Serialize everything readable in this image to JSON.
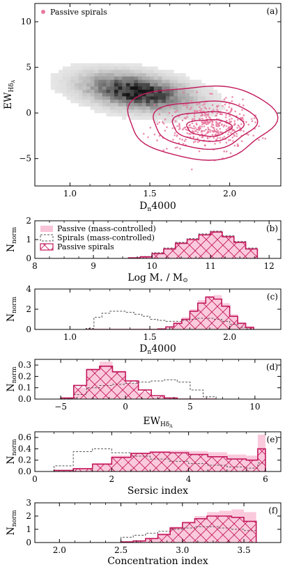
{
  "colors": {
    "passive": "#c2185b",
    "passive_fill": "#f9c4d8",
    "passive_hatch": "#c2185b",
    "spiral_line": "#555555",
    "scatter": "#e8799f",
    "contour": "#c2185b",
    "density_dark": "#111111"
  },
  "chart_data": [
    {
      "id": "a",
      "type": "scatter",
      "panel_label": "(a)",
      "xlabel": "D",
      "xlabel_sub": "n",
      "xlabel_tail": "4000",
      "ylabel": "EW",
      "ylabel_sub": "Hδ",
      "ylabel_subsub": "A",
      "xlim": [
        0.78,
        2.32
      ],
      "ylim": [
        -8,
        12
      ],
      "xticks": [
        "1.0",
        "1.5",
        "2.0"
      ],
      "xtick_values": [
        1.0,
        1.5,
        2.0
      ],
      "yticks": [
        "−5",
        "0",
        "5",
        "10"
      ],
      "ytick_values": [
        -5,
        0,
        5,
        10
      ],
      "legend": [
        "Passive spirals"
      ],
      "legend_placement": "top-left",
      "density": {
        "center_x": 1.42,
        "center_y": 2.3,
        "slope": -6.0,
        "sigma_major": 0.32,
        "sigma_minor": 1.3
      },
      "contours": [
        {
          "cx": 1.87,
          "cy": -1.6,
          "rx": 0.14,
          "ry": 0.9
        },
        {
          "cx": 1.86,
          "cy": -1.4,
          "rx": 0.22,
          "ry": 1.6
        },
        {
          "cx": 1.84,
          "cy": -1.2,
          "rx": 0.32,
          "ry": 2.6
        },
        {
          "cx": 1.82,
          "cy": -0.9,
          "rx": 0.46,
          "ry": 4.0
        }
      ],
      "scatter_center": {
        "x": 1.87,
        "y": -1.3
      }
    },
    {
      "id": "b",
      "type": "bar",
      "panel_label": "(b)",
      "xlabel": "Log M",
      "xlabel_star": "⋆",
      "xlabel_tail": " / M",
      "xlabel_sun": "⊙",
      "ylabel": "N",
      "ylabel_sub": "norm",
      "xlim": [
        8,
        12.2
      ],
      "ylim": [
        0,
        2
      ],
      "xticks": [
        "8",
        "9",
        "10",
        "11",
        "12"
      ],
      "xtick_values": [
        8,
        9,
        10,
        11,
        12
      ],
      "yticks": [
        "0",
        "1",
        "2"
      ],
      "ytick_values": [
        0,
        1,
        2
      ],
      "legend": [
        "Passive (mass-controlled)",
        "Spirals (mass-controlled)",
        "Passive spirals"
      ],
      "legend_placement": "top-left",
      "bin_edges": [
        9.6,
        9.8,
        10.0,
        10.2,
        10.4,
        10.6,
        10.8,
        11.0,
        11.2,
        11.4,
        11.6,
        11.8
      ],
      "series": [
        {
          "name": "Passive (mass-controlled)",
          "values": [
            0.03,
            0.1,
            0.3,
            0.55,
            0.85,
            1.05,
            1.3,
            1.45,
            1.2,
            0.9,
            0.55
          ]
        },
        {
          "name": "Spirals (mass-controlled)",
          "values": [
            0.03,
            0.1,
            0.3,
            0.55,
            0.85,
            1.05,
            1.3,
            1.45,
            1.2,
            0.9,
            0.55
          ]
        },
        {
          "name": "Passive spirals",
          "values": [
            0.03,
            0.08,
            0.25,
            0.5,
            0.8,
            1.0,
            1.25,
            1.4,
            1.15,
            0.85,
            0.5
          ]
        }
      ]
    },
    {
      "id": "c",
      "type": "bar",
      "panel_label": "(c)",
      "xlabel": "D",
      "xlabel_sub": "n",
      "xlabel_tail": "4000",
      "ylabel": "N",
      "ylabel_sub": "norm",
      "xlim": [
        0.78,
        2.32
      ],
      "ylim": [
        0,
        4
      ],
      "xticks": [
        "1.0",
        "1.5",
        "2.0"
      ],
      "xtick_values": [
        1.0,
        1.5,
        2.0
      ],
      "yticks": [
        "0",
        "2",
        "4"
      ],
      "ytick_values": [
        0,
        2,
        4
      ],
      "bin_edges": [
        1.1,
        1.15,
        1.2,
        1.25,
        1.3,
        1.35,
        1.4,
        1.45,
        1.5,
        1.55,
        1.6,
        1.65,
        1.7,
        1.75,
        1.8,
        1.85,
        1.9,
        1.95,
        2.0,
        2.05,
        2.1,
        2.15
      ],
      "series": [
        {
          "name": "Passive (mass-controlled)",
          "values": [
            0,
            0,
            0,
            0,
            0,
            0,
            0,
            0,
            0,
            0.1,
            0.3,
            0.7,
            1.2,
            2.0,
            2.9,
            3.3,
            3.4,
            2.6,
            1.5,
            0.7,
            0.3
          ]
        },
        {
          "name": "Spirals (mass-controlled)",
          "values": [
            0.1,
            1.2,
            1.6,
            1.8,
            1.8,
            1.7,
            1.5,
            1.3,
            1.0,
            0.9,
            0.8,
            0.8,
            0.9,
            1.0,
            1.1,
            1.1,
            1.0,
            0.8,
            0.5,
            0.2,
            0.05
          ]
        },
        {
          "name": "Passive spirals",
          "values": [
            0,
            0,
            0,
            0,
            0,
            0,
            0,
            0,
            0,
            0.05,
            0.25,
            0.6,
            1.0,
            1.8,
            2.6,
            3.2,
            3.0,
            2.3,
            1.3,
            0.6,
            0.2
          ]
        }
      ]
    },
    {
      "id": "d",
      "type": "bar",
      "panel_label": "(d)",
      "xlabel": "EW",
      "xlabel_sub": "Hδ",
      "xlabel_subsub": "A",
      "ylabel": "N",
      "ylabel_sub": "norm",
      "xlim": [
        -7,
        12
      ],
      "ylim": [
        0,
        0.35
      ],
      "xticks": [
        "−5",
        "0",
        "5",
        "10"
      ],
      "xtick_values": [
        -5,
        0,
        5,
        10
      ],
      "yticks": [
        "0.0",
        "0.1",
        "0.2",
        "0.3"
      ],
      "ytick_values": [
        0,
        0.1,
        0.2,
        0.3
      ],
      "bin_edges": [
        -5,
        -4,
        -3,
        -2,
        -1,
        0,
        1,
        2,
        3,
        4,
        5,
        6,
        7
      ],
      "series": [
        {
          "name": "Passive (mass-controlled)",
          "values": [
            0.01,
            0.1,
            0.27,
            0.33,
            0.25,
            0.14,
            0.06,
            0.02,
            0.01,
            0,
            0,
            0
          ]
        },
        {
          "name": "Spirals (mass-controlled)",
          "values": [
            0.005,
            0.04,
            0.1,
            0.12,
            0.13,
            0.14,
            0.15,
            0.16,
            0.17,
            0.15,
            0.08,
            0.02
          ]
        },
        {
          "name": "Passive spirals",
          "values": [
            0.01,
            0.12,
            0.26,
            0.29,
            0.24,
            0.16,
            0.08,
            0.03,
            0.01,
            0,
            0,
            0
          ]
        }
      ]
    },
    {
      "id": "e",
      "type": "bar",
      "panel_label": "(e)",
      "xlabel": "Sersic index",
      "ylabel": "N",
      "ylabel_sub": "norm",
      "xlim": [
        0,
        6.4
      ],
      "ylim": [
        0,
        0.7
      ],
      "xticks": [
        "0",
        "2",
        "4",
        "6"
      ],
      "xtick_values": [
        0,
        2,
        4,
        6
      ],
      "yticks": [
        "0.0",
        "0.2",
        "0.4",
        "0.6"
      ],
      "ytick_values": [
        0,
        0.2,
        0.4,
        0.6
      ],
      "bin_edges": [
        0.5,
        1.0,
        1.5,
        2.0,
        2.5,
        3.0,
        3.5,
        4.0,
        4.5,
        5.0,
        5.5,
        5.8,
        6.0
      ],
      "series": [
        {
          "name": "Passive (mass-controlled)",
          "values": [
            0.02,
            0.06,
            0.15,
            0.28,
            0.33,
            0.36,
            0.37,
            0.36,
            0.34,
            0.3,
            0.28,
            0.65
          ]
        },
        {
          "name": "Spirals (mass-controlled)",
          "values": [
            0.1,
            0.35,
            0.4,
            0.33,
            0.27,
            0.22,
            0.18,
            0.14,
            0.11,
            0.08,
            0.06,
            0.15
          ]
        },
        {
          "name": "Passive spirals",
          "values": [
            0.02,
            0.05,
            0.13,
            0.25,
            0.32,
            0.34,
            0.33,
            0.3,
            0.26,
            0.22,
            0.2,
            0.4
          ]
        }
      ]
    },
    {
      "id": "f",
      "type": "bar",
      "panel_label": "(f)",
      "xlabel": "Concentration index",
      "ylabel": "N",
      "ylabel_sub": "norm",
      "xlim": [
        1.8,
        3.8
      ],
      "ylim": [
        0,
        3
      ],
      "xticks": [
        "2.0",
        "2.5",
        "3.0",
        "3.5"
      ],
      "xtick_values": [
        2.0,
        2.5,
        3.0,
        3.5
      ],
      "yticks": [
        "0",
        "1",
        "2",
        "3"
      ],
      "ytick_values": [
        0,
        1,
        2,
        3
      ],
      "bin_edges": [
        2.5,
        2.6,
        2.7,
        2.8,
        2.9,
        3.0,
        3.1,
        3.2,
        3.3,
        3.4,
        3.5,
        3.6
      ],
      "series": [
        {
          "name": "Passive (mass-controlled)",
          "values": [
            0.05,
            0.15,
            0.35,
            0.7,
            1.2,
            1.6,
            2.0,
            2.3,
            2.4,
            2.5,
            2.3
          ]
        },
        {
          "name": "Spirals (mass-controlled)",
          "values": [
            0.4,
            0.55,
            0.7,
            0.85,
            1.0,
            1.1,
            1.2,
            1.2,
            1.1,
            1.0,
            0.9
          ]
        },
        {
          "name": "Passive spirals",
          "values": [
            0.05,
            0.12,
            0.3,
            0.6,
            1.1,
            1.5,
            1.8,
            2.0,
            2.0,
            1.9,
            1.6
          ]
        }
      ]
    }
  ]
}
